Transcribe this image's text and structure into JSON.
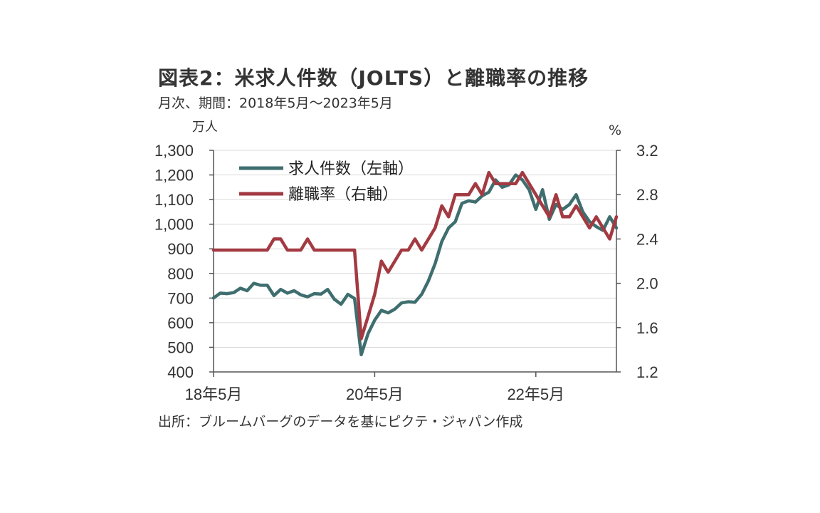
{
  "title": "図表2：米求人件数（JOLTS）と離職率の推移",
  "subtitle": "月次、期間：2018年5月～2023年5月",
  "left_unit": "万人",
  "right_unit": "%",
  "source": "出所：ブルームバーグのデータを基にピクテ・ジャパン作成",
  "colors": {
    "openings": "#3f6e6f",
    "quits": "#a33a42",
    "axis": "#555555",
    "grid": "#d9d9d9"
  },
  "chart_data": {
    "type": "line",
    "x_tick_labels": [
      "18年5月",
      "20年5月",
      "22年5月"
    ],
    "x_tick_months": [
      0,
      24,
      48
    ],
    "x_range": [
      0,
      60
    ],
    "left_axis": {
      "ylim": [
        400,
        1300
      ],
      "ticks": [
        "400",
        "500",
        "600",
        "700",
        "800",
        "900",
        "1,000",
        "1,100",
        "1,200",
        "1,300"
      ]
    },
    "right_axis": {
      "ylim": [
        1.2,
        3.2
      ],
      "ticks": [
        "1.2",
        "1.6",
        "2.0",
        "2.4",
        "2.8",
        "3.2"
      ]
    },
    "grid": "horizontal",
    "legend_position": "top-left",
    "series": [
      {
        "name": "求人件数（左軸）",
        "axis": "left",
        "months": [
          0,
          1,
          2,
          3,
          4,
          5,
          6,
          7,
          8,
          9,
          10,
          11,
          12,
          13,
          14,
          15,
          16,
          17,
          18,
          19,
          20,
          21,
          22,
          23,
          24,
          25,
          26,
          27,
          28,
          29,
          30,
          31,
          32,
          33,
          34,
          35,
          36,
          37,
          38,
          39,
          40,
          41,
          42,
          43,
          44,
          45,
          46,
          47,
          48,
          49,
          50,
          51,
          52,
          53,
          54,
          55,
          56,
          57,
          58,
          59,
          60
        ],
        "values": [
          700,
          720,
          718,
          722,
          740,
          730,
          760,
          752,
          752,
          710,
          735,
          720,
          730,
          713,
          705,
          718,
          716,
          735,
          695,
          675,
          715,
          698,
          470,
          555,
          610,
          650,
          640,
          655,
          680,
          685,
          683,
          715,
          770,
          840,
          930,
          985,
          1010,
          1085,
          1095,
          1090,
          1115,
          1130,
          1180,
          1150,
          1160,
          1200,
          1180,
          1140,
          1060,
          1140,
          1020,
          1080,
          1060,
          1080,
          1120,
          1050,
          1010,
          990,
          975,
          1030,
          985
        ]
      },
      {
        "name": "離職率（右軸）",
        "axis": "right",
        "months": [
          0,
          1,
          2,
          3,
          4,
          5,
          6,
          7,
          8,
          9,
          10,
          11,
          12,
          13,
          14,
          15,
          16,
          17,
          18,
          19,
          20,
          21,
          22,
          23,
          24,
          25,
          26,
          27,
          28,
          29,
          30,
          31,
          32,
          33,
          34,
          35,
          36,
          37,
          38,
          39,
          40,
          41,
          42,
          43,
          44,
          45,
          46,
          47,
          48,
          49,
          50,
          51,
          52,
          53,
          54,
          55,
          56,
          57,
          58,
          59,
          60
        ],
        "values": [
          2.3,
          2.3,
          2.3,
          2.3,
          2.3,
          2.3,
          2.3,
          2.3,
          2.3,
          2.4,
          2.4,
          2.3,
          2.3,
          2.3,
          2.4,
          2.3,
          2.3,
          2.3,
          2.3,
          2.3,
          2.3,
          2.3,
          1.5,
          1.7,
          1.9,
          2.2,
          2.1,
          2.2,
          2.3,
          2.3,
          2.4,
          2.3,
          2.4,
          2.5,
          2.7,
          2.6,
          2.8,
          2.8,
          2.8,
          2.9,
          2.8,
          3.0,
          2.9,
          2.9,
          2.9,
          2.9,
          3.0,
          2.9,
          2.8,
          2.7,
          2.6,
          2.8,
          2.6,
          2.6,
          2.7,
          2.6,
          2.5,
          2.6,
          2.5,
          2.4,
          2.6
        ]
      }
    ]
  }
}
